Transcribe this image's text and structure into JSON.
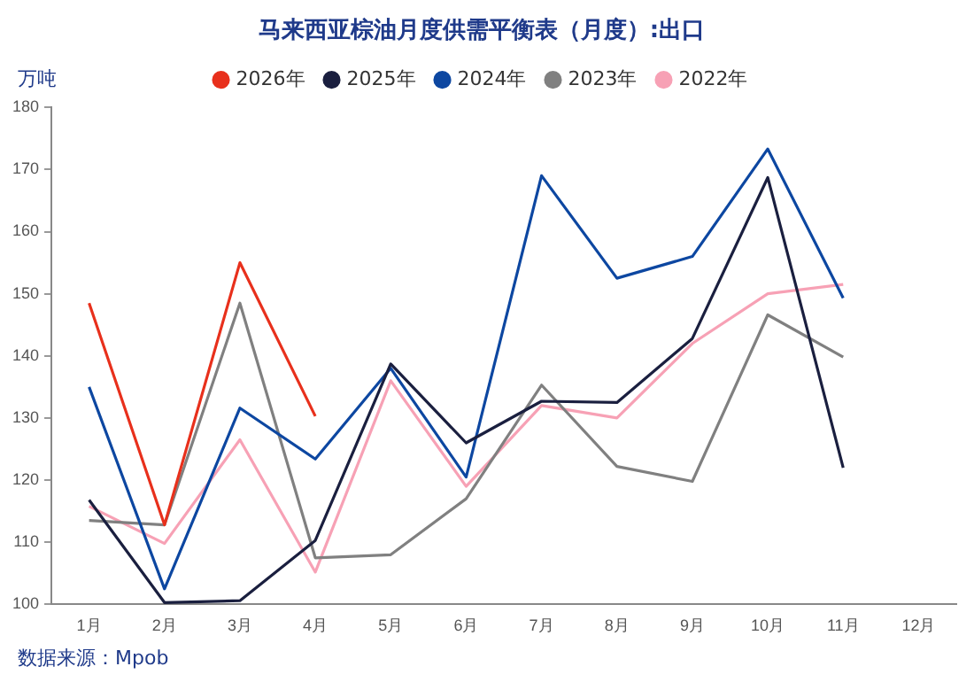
{
  "chart_data": {
    "type": "line",
    "title": "马来西亚棕油月度供需平衡表（月度）:出口",
    "ylabel": "万吨",
    "categories": [
      "1月",
      "2月",
      "3月",
      "4月",
      "5月",
      "6月",
      "7月",
      "8月",
      "9月",
      "10月",
      "11月",
      "12月"
    ],
    "series": [
      {
        "name": "2026年",
        "color": "#e8301c",
        "values": [
          148.5,
          112.8,
          155,
          130.3,
          null,
          null,
          null,
          null,
          null,
          null,
          null,
          null
        ]
      },
      {
        "name": "2025年",
        "color": "#1a1f3f",
        "values": [
          116.8,
          100.3,
          100.6,
          110.3,
          138.7,
          126,
          132.7,
          132.5,
          142.8,
          168.7,
          122,
          null
        ]
      },
      {
        "name": "2024年",
        "color": "#0d47a1",
        "values": [
          135,
          102.5,
          131.6,
          123.4,
          138,
          120.5,
          169,
          152.5,
          156,
          173.3,
          149.3,
          null
        ]
      },
      {
        "name": "2023年",
        "color": "#808080",
        "values": [
          113.5,
          112.8,
          148.5,
          107.5,
          108,
          117,
          135.3,
          122.2,
          119.8,
          146.6,
          139.8,
          null
        ]
      },
      {
        "name": "2022年",
        "color": "#f7a1b5",
        "values": [
          115.8,
          109.8,
          126.5,
          105.2,
          136,
          119,
          132,
          130,
          142,
          150,
          151.5,
          null
        ]
      }
    ],
    "ylim": [
      100,
      180
    ],
    "yticks": [
      100,
      110,
      120,
      130,
      140,
      150,
      160,
      170,
      180
    ],
    "grid": false,
    "legend": "top",
    "marker": "none",
    "line_style": "solid",
    "annotations": [
      "数据来源：Mpob"
    ]
  }
}
